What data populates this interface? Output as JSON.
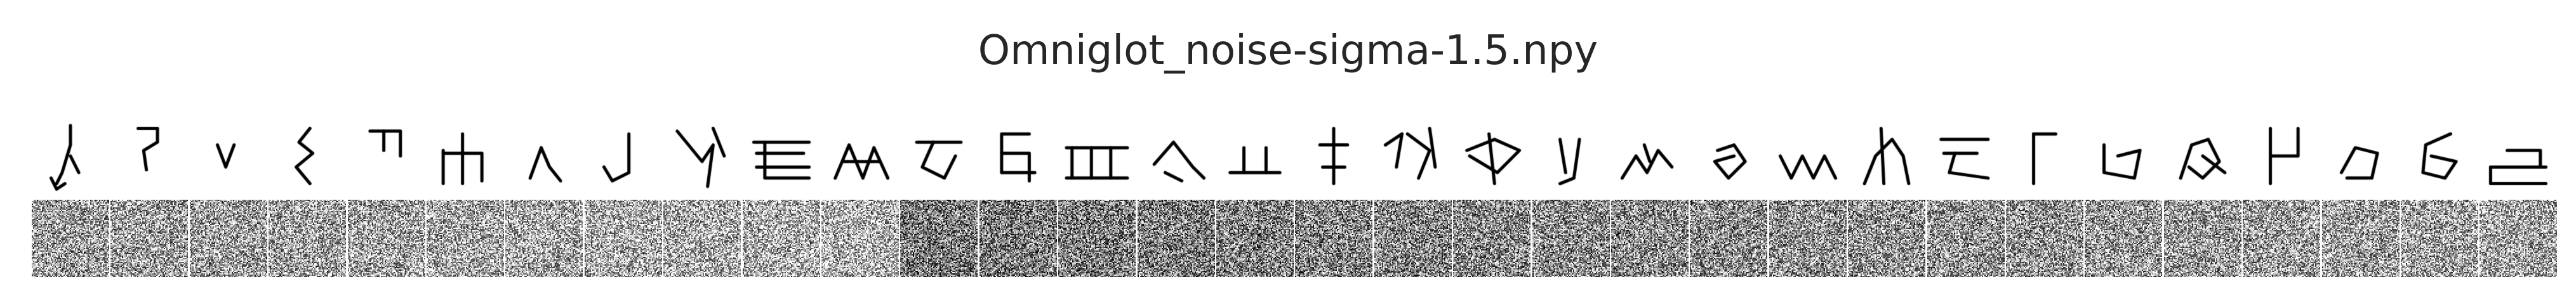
{
  "figure": {
    "title": "Omniglot_noise-sigma-1.5.npy"
  },
  "samples": {
    "count": 32,
    "rows": [
      "clean",
      "noisy"
    ],
    "noise_sigma": 1.5,
    "ink_color": "#000000",
    "background_color": "#ffffff",
    "noise_palette": "grayscale"
  }
}
